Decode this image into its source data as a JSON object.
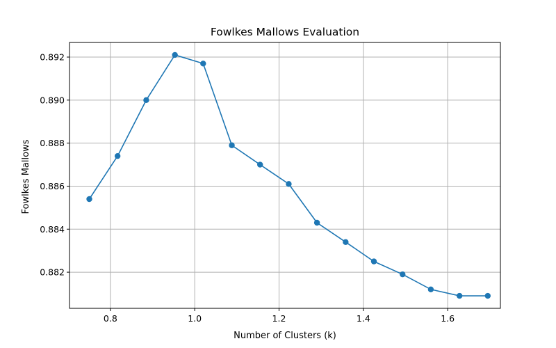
{
  "chart_data": {
    "type": "line",
    "title": "Fowlkes Mallows Evaluation",
    "xlabel": "Number of Clusters (k)",
    "ylabel": "Fowlkes Mallows",
    "xlim": [
      0.703,
      1.725
    ],
    "ylim": [
      0.88032,
      0.89268
    ],
    "xticks": [
      0.8,
      1.0,
      1.2,
      1.4,
      1.6
    ],
    "xtick_labels": [
      "0.8",
      "1.0",
      "1.2",
      "1.4",
      "1.6"
    ],
    "yticks": [
      0.882,
      0.884,
      0.886,
      0.888,
      0.89,
      0.892
    ],
    "ytick_labels": [
      "0.882",
      "0.884",
      "0.886",
      "0.888",
      "0.890",
      "0.892"
    ],
    "grid": true,
    "color": "#1f77b4",
    "series": [
      {
        "x": [
          0.75,
          0.817,
          0.885,
          0.953,
          1.02,
          1.088,
          1.155,
          1.223,
          1.29,
          1.358,
          1.425,
          1.493,
          1.56,
          1.628,
          1.695
        ],
        "values": [
          0.8854,
          0.8874,
          0.89,
          0.8921,
          0.8917,
          0.8879,
          0.887,
          0.8861,
          0.8843,
          0.8834,
          0.8825,
          0.8819,
          0.8812,
          0.8809,
          0.8809
        ]
      }
    ]
  }
}
